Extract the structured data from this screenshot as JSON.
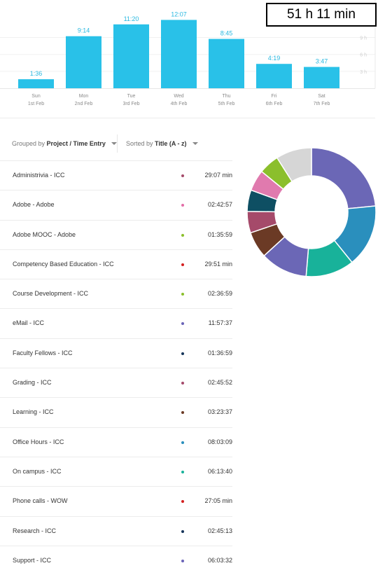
{
  "total": "51 h 11 min",
  "chart_data": {
    "type": "bar",
    "categories": [
      "Sun",
      "Mon",
      "Tue",
      "Wed",
      "Thu",
      "Fri",
      "Sat"
    ],
    "dates": [
      "1st Feb",
      "2nd Feb",
      "3rd Feb",
      "4th Feb",
      "5th Feb",
      "6th Feb",
      "7th Feb"
    ],
    "value_labels": [
      "1:36",
      "9:14",
      "11:20",
      "12:07",
      "8:45",
      "4:19",
      "3:47"
    ],
    "values": [
      1.6,
      9.23,
      11.33,
      12.12,
      8.75,
      4.32,
      3.78
    ],
    "y_ticks": [
      "3 h",
      "6 h",
      "9 h"
    ],
    "y_tick_values": [
      3,
      6,
      9
    ],
    "ylim": [
      0,
      15
    ],
    "color": "#29c1e8"
  },
  "controls": {
    "grouped_prefix": "Grouped by",
    "grouped_value": "Project / Time Entry",
    "sorted_prefix": "Sorted by",
    "sorted_value": "Title (A - z)"
  },
  "entries": [
    {
      "title": "Administrivia - ICC",
      "duration": "29:07 min",
      "color": "#a54a6a"
    },
    {
      "title": "Adobe - Adobe",
      "duration": "02:42:57",
      "color": "#e36ea8"
    },
    {
      "title": "Adobe MOOC - Adobe",
      "duration": "01:35:59",
      "color": "#8bbf2c"
    },
    {
      "title": "Competency Based Education - ICC",
      "duration": "29:51 min",
      "color": "#d42020"
    },
    {
      "title": "Course Development - ICC",
      "duration": "02:36:59",
      "color": "#8bbf2c"
    },
    {
      "title": "eMail - ICC",
      "duration": "11:57:37",
      "color": "#6a64b8"
    },
    {
      "title": "Faculty Fellows - ICC",
      "duration": "01:36:59",
      "color": "#16355a"
    },
    {
      "title": "Grading - ICC",
      "duration": "02:45:52",
      "color": "#a54a6a"
    },
    {
      "title": "Learning - ICC",
      "duration": "03:23:37",
      "color": "#6b3a25"
    },
    {
      "title": "Office Hours - ICC",
      "duration": "08:03:09",
      "color": "#2a8fbd"
    },
    {
      "title": "On campus - ICC",
      "duration": "06:13:40",
      "color": "#18b29a"
    },
    {
      "title": "Phone calls - WOW",
      "duration": "27:05 min",
      "color": "#d42020"
    },
    {
      "title": "Research - ICC",
      "duration": "02:45:13",
      "color": "#16355a"
    },
    {
      "title": "Support - ICC",
      "duration": "06:03:32",
      "color": "#6a64b8"
    }
  ],
  "donut": {
    "segments": [
      {
        "value": 12.0,
        "color": "#6b67b6"
      },
      {
        "value": 8.05,
        "color": "#2a8fbd"
      },
      {
        "value": 6.23,
        "color": "#18b29a"
      },
      {
        "value": 6.06,
        "color": "#6b67b6"
      },
      {
        "value": 3.39,
        "color": "#6b3a25"
      },
      {
        "value": 2.76,
        "color": "#a54a6a"
      },
      {
        "value": 2.75,
        "color": "#0e4f63"
      },
      {
        "value": 2.72,
        "color": "#e07aae"
      },
      {
        "value": 2.62,
        "color": "#8bbf2c"
      },
      {
        "value": 4.6,
        "color": "#d6d6d6"
      }
    ]
  }
}
